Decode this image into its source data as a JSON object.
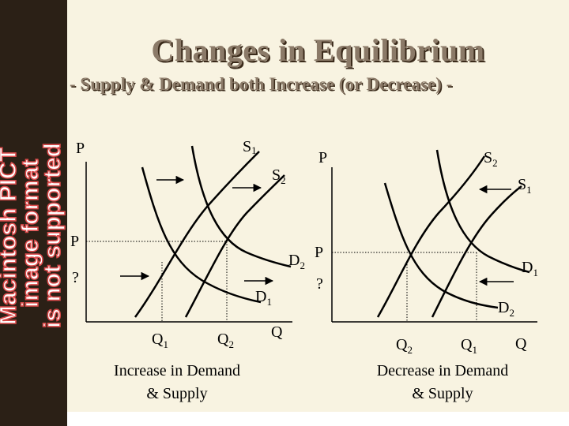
{
  "title": "Changes in Equilibrium",
  "subtitle": "- Supply & Demand both Increase (or Decrease) -",
  "pict_notice": [
    "Macintosh PICT",
    "image format",
    "is not supported"
  ],
  "colors": {
    "accent_text": "#8b7a68",
    "shadow": "#3a2a1a",
    "sidebar": "#2b2016",
    "background": "#f8f3e1",
    "notice": "#d94a4a"
  },
  "left_graph": {
    "y_axis_label": "P",
    "p_tick_label": "P",
    "q_mark_label": "?",
    "x_axis_label": "Q",
    "supply_1": "S",
    "supply_1_sub": "1",
    "supply_2": "S",
    "supply_2_sub": "2",
    "demand_1": "D",
    "demand_1_sub": "1",
    "demand_2": "D",
    "demand_2_sub": "2",
    "q1": "Q",
    "q1_sub": "1",
    "q2": "Q",
    "q2_sub": "2",
    "caption_line1": "Increase in Demand",
    "caption_line2": "& Supply"
  },
  "right_graph": {
    "y_axis_label": "P",
    "p_tick_label": "P",
    "q_mark_label": "?",
    "x_axis_label": "Q",
    "supply_1": "S",
    "supply_1_sub": "1",
    "supply_2": "S",
    "supply_2_sub": "2",
    "demand_1": "D",
    "demand_1_sub": "1",
    "demand_2": "D",
    "demand_2_sub": "2",
    "q1": "Q",
    "q1_sub": "1",
    "q2": "Q",
    "q2_sub": "2",
    "caption_line1": "Decrease in Demand",
    "caption_line2": "& Supply"
  }
}
